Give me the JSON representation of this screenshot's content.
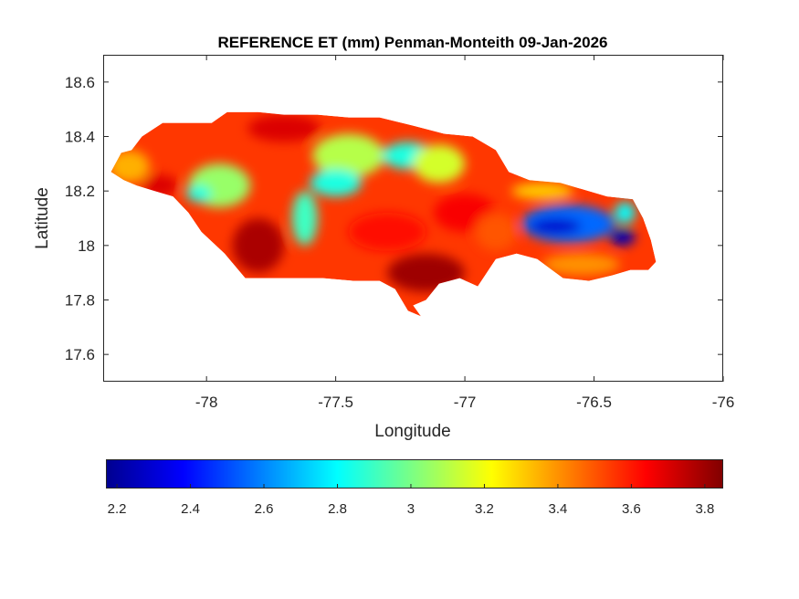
{
  "chart_data": {
    "type": "heatmap",
    "title": "REFERENCE ET (mm) Penman-Monteith 09-Jan-2026",
    "xlabel": "Longitude",
    "ylabel": "Latitude",
    "xlim": [
      -78.4,
      -76
    ],
    "ylim": [
      17.5,
      18.7
    ],
    "xticks": [
      -78,
      -77.5,
      -77,
      -76.5,
      -76
    ],
    "xtick_labels": [
      "-78",
      "-77.5",
      "-77",
      "-76.5",
      "-76"
    ],
    "yticks": [
      17.6,
      17.8,
      18,
      18.2,
      18.4,
      18.6
    ],
    "ytick_labels": [
      "17.6",
      "17.8",
      "18",
      "18.2",
      "18.4",
      "18.6"
    ],
    "grid": false,
    "colormap": "jet",
    "colorbar": {
      "location": "bottom",
      "clim": [
        2.17,
        3.85
      ],
      "ticks": [
        2.2,
        2.4,
        2.6,
        2.8,
        3,
        3.2,
        3.4,
        3.6,
        3.8
      ],
      "tick_labels": [
        "2.2",
        "2.4",
        "2.6",
        "2.8",
        "3",
        "3.2",
        "3.4",
        "3.6",
        "3.8"
      ]
    },
    "field": {
      "background_value": 3.55,
      "outline": [
        [
          -78.37,
          18.27
        ],
        [
          -78.33,
          18.34
        ],
        [
          -78.29,
          18.35
        ],
        [
          -78.25,
          18.4
        ],
        [
          -78.17,
          18.45
        ],
        [
          -78.08,
          18.45
        ],
        [
          -77.98,
          18.45
        ],
        [
          -77.92,
          18.49
        ],
        [
          -77.8,
          18.49
        ],
        [
          -77.7,
          18.48
        ],
        [
          -77.57,
          18.48
        ],
        [
          -77.45,
          18.47
        ],
        [
          -77.33,
          18.47
        ],
        [
          -77.2,
          18.44
        ],
        [
          -77.08,
          18.41
        ],
        [
          -76.97,
          18.4
        ],
        [
          -76.88,
          18.35
        ],
        [
          -76.83,
          18.27
        ],
        [
          -76.75,
          18.24
        ],
        [
          -76.63,
          18.23
        ],
        [
          -76.45,
          18.18
        ],
        [
          -76.35,
          18.17
        ],
        [
          -76.31,
          18.1
        ],
        [
          -76.28,
          18.02
        ],
        [
          -76.26,
          17.94
        ],
        [
          -76.29,
          17.91
        ],
        [
          -76.36,
          17.91
        ],
        [
          -76.43,
          17.89
        ],
        [
          -76.52,
          17.87
        ],
        [
          -76.62,
          17.88
        ],
        [
          -76.72,
          17.95
        ],
        [
          -76.8,
          17.97
        ],
        [
          -76.88,
          17.95
        ],
        [
          -76.95,
          17.85
        ],
        [
          -77.02,
          17.88
        ],
        [
          -77.1,
          17.86
        ],
        [
          -77.15,
          17.8
        ],
        [
          -77.2,
          17.78
        ],
        [
          -77.17,
          17.74
        ],
        [
          -77.22,
          17.76
        ],
        [
          -77.27,
          17.84
        ],
        [
          -77.33,
          17.87
        ],
        [
          -77.43,
          17.87
        ],
        [
          -77.55,
          17.88
        ],
        [
          -77.68,
          17.88
        ],
        [
          -77.78,
          17.88
        ],
        [
          -77.85,
          17.88
        ],
        [
          -77.93,
          17.97
        ],
        [
          -78.02,
          18.05
        ],
        [
          -78.07,
          18.12
        ],
        [
          -78.13,
          18.18
        ],
        [
          -78.2,
          18.2
        ],
        [
          -78.27,
          18.22
        ],
        [
          -78.32,
          18.24
        ]
      ],
      "regions": [
        {
          "label": "northwest coast (orange-yellow)",
          "lon": -78.3,
          "lat": 18.29,
          "value": 3.35,
          "rx": 0.08,
          "ry": 0.06
        },
        {
          "label": "western interior (yellow-green)",
          "lon": -77.95,
          "lat": 18.22,
          "value": 3.05,
          "rx": 0.12,
          "ry": 0.08
        },
        {
          "label": "western cyan patch",
          "lon": -78.03,
          "lat": 18.19,
          "value": 2.85,
          "rx": 0.05,
          "ry": 0.03
        },
        {
          "label": "far west coast (dark red)",
          "lon": -78.18,
          "lat": 18.22,
          "value": 3.7,
          "rx": 0.07,
          "ry": 0.04
        },
        {
          "label": "southwest (dark red)",
          "lon": -77.8,
          "lat": 18.0,
          "value": 3.78,
          "rx": 0.1,
          "ry": 0.1
        },
        {
          "label": "north-central (dark red)",
          "lon": -77.7,
          "lat": 18.43,
          "value": 3.7,
          "rx": 0.14,
          "ry": 0.05
        },
        {
          "label": "northern plateau (yellow)",
          "lon": -77.45,
          "lat": 18.33,
          "value": 3.1,
          "rx": 0.14,
          "ry": 0.08
        },
        {
          "label": "central cyan (cockpit country)",
          "lon": -77.5,
          "lat": 18.23,
          "value": 2.85,
          "rx": 0.1,
          "ry": 0.05
        },
        {
          "label": "central west cyan band",
          "lon": -77.62,
          "lat": 18.1,
          "value": 2.9,
          "rx": 0.05,
          "ry": 0.1
        },
        {
          "label": "central north-east cyan",
          "lon": -77.22,
          "lat": 18.33,
          "value": 2.85,
          "rx": 0.1,
          "ry": 0.05
        },
        {
          "label": "central north yellow",
          "lon": -77.1,
          "lat": 18.3,
          "value": 3.15,
          "rx": 0.1,
          "ry": 0.07
        },
        {
          "label": "central south red",
          "lon": -77.3,
          "lat": 18.05,
          "value": 3.62,
          "rx": 0.15,
          "ry": 0.07
        },
        {
          "label": "south coast (dark red)",
          "lon": -77.15,
          "lat": 17.9,
          "value": 3.8,
          "rx": 0.15,
          "ry": 0.07
        },
        {
          "label": "central belt red",
          "lon": -77.0,
          "lat": 18.12,
          "value": 3.65,
          "rx": 0.12,
          "ry": 0.07
        },
        {
          "label": "east-central orange",
          "lon": -76.88,
          "lat": 18.05,
          "value": 3.5,
          "rx": 0.08,
          "ry": 0.07
        },
        {
          "label": "eastern lowlands (orange)",
          "lon": -76.55,
          "lat": 17.93,
          "value": 3.4,
          "rx": 0.15,
          "ry": 0.04
        },
        {
          "label": "blue mountains (light blue)",
          "lon": -76.6,
          "lat": 18.08,
          "value": 2.55,
          "rx": 0.18,
          "ry": 0.07
        },
        {
          "label": "blue mountains core (blue)",
          "lon": -76.65,
          "lat": 18.07,
          "value": 2.3,
          "rx": 0.1,
          "ry": 0.03
        },
        {
          "label": "blue mountains east core (blue)",
          "lon": -76.39,
          "lat": 18.03,
          "value": 2.25,
          "rx": 0.05,
          "ry": 0.03
        },
        {
          "label": "eastern cyan edge",
          "lon": -76.38,
          "lat": 18.12,
          "value": 2.8,
          "rx": 0.04,
          "ry": 0.04
        },
        {
          "label": "northeast coast (orange)",
          "lon": -76.7,
          "lat": 18.2,
          "value": 3.3,
          "rx": 0.12,
          "ry": 0.03
        }
      ]
    }
  }
}
